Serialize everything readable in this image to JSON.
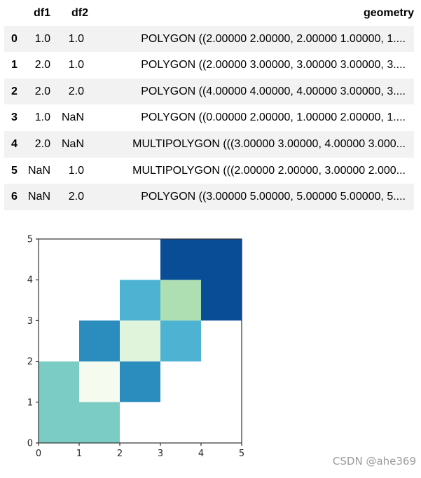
{
  "table": {
    "index_header": "",
    "columns": [
      "df1",
      "df2",
      "geometry"
    ],
    "rows": [
      {
        "index": "0",
        "df1": "1.0",
        "df2": "1.0",
        "geometry": "POLYGON ((2.00000 2.00000, 2.00000 1.00000, 1...."
      },
      {
        "index": "1",
        "df1": "2.0",
        "df2": "1.0",
        "geometry": "POLYGON ((2.00000 3.00000, 3.00000 3.00000, 3...."
      },
      {
        "index": "2",
        "df1": "2.0",
        "df2": "2.0",
        "geometry": "POLYGON ((4.00000 4.00000, 4.00000 3.00000, 3...."
      },
      {
        "index": "3",
        "df1": "1.0",
        "df2": "NaN",
        "geometry": "POLYGON ((0.00000 2.00000, 1.00000 2.00000, 1...."
      },
      {
        "index": "4",
        "df1": "2.0",
        "df2": "NaN",
        "geometry": "MULTIPOLYGON (((3.00000 3.00000, 4.00000 3.000..."
      },
      {
        "index": "5",
        "df1": "NaN",
        "df2": "1.0",
        "geometry": "MULTIPOLYGON (((2.00000 2.00000, 3.00000 2.000..."
      },
      {
        "index": "6",
        "df1": "NaN",
        "df2": "2.0",
        "geometry": "POLYGON ((3.00000 5.00000, 5.00000 5.00000, 5...."
      }
    ]
  },
  "chart_data": {
    "type": "polygon-map",
    "title": "",
    "xlabel": "",
    "ylabel": "",
    "xlim": [
      0,
      5
    ],
    "ylim": [
      0,
      5
    ],
    "xticks": [
      "0",
      "1",
      "2",
      "3",
      "4",
      "5"
    ],
    "yticks": [
      "0",
      "1",
      "2",
      "3",
      "4",
      "5"
    ],
    "grid": false,
    "legend": false,
    "spine_color": "#333333",
    "tick_label_color": "#262626",
    "polygons": [
      {
        "name": "row-0",
        "color": "#f5fbef",
        "points": [
          [
            1,
            1
          ],
          [
            2,
            1
          ],
          [
            2,
            2
          ],
          [
            1,
            2
          ]
        ]
      },
      {
        "name": "row-1",
        "color": "#e0f3db",
        "points": [
          [
            2,
            2
          ],
          [
            3,
            2
          ],
          [
            3,
            3
          ],
          [
            2,
            3
          ]
        ]
      },
      {
        "name": "row-2",
        "color": "#aedfb2",
        "points": [
          [
            3,
            3
          ],
          [
            4,
            3
          ],
          [
            4,
            4
          ],
          [
            3,
            4
          ]
        ]
      },
      {
        "name": "row-3",
        "color": "#7bccc4",
        "points": [
          [
            0,
            0
          ],
          [
            2,
            0
          ],
          [
            2,
            1
          ],
          [
            1,
            1
          ],
          [
            1,
            2
          ],
          [
            0,
            2
          ]
        ]
      },
      {
        "name": "row-4-part-1",
        "color": "#4eb3d3",
        "points": [
          [
            3,
            2
          ],
          [
            4,
            2
          ],
          [
            4,
            3
          ],
          [
            3,
            3
          ]
        ]
      },
      {
        "name": "row-4-part-2",
        "color": "#4eb3d3",
        "points": [
          [
            2,
            3
          ],
          [
            3,
            3
          ],
          [
            3,
            4
          ],
          [
            2,
            4
          ]
        ]
      },
      {
        "name": "row-5-part-1",
        "color": "#2b8cbe",
        "points": [
          [
            2,
            1
          ],
          [
            3,
            1
          ],
          [
            3,
            2
          ],
          [
            2,
            2
          ]
        ]
      },
      {
        "name": "row-5-part-2",
        "color": "#2b8cbe",
        "points": [
          [
            1,
            2
          ],
          [
            2,
            2
          ],
          [
            2,
            3
          ],
          [
            1,
            3
          ]
        ]
      },
      {
        "name": "row-6",
        "color": "#084d96",
        "points": [
          [
            4,
            3
          ],
          [
            5,
            3
          ],
          [
            5,
            5
          ],
          [
            3,
            5
          ],
          [
            3,
            4
          ],
          [
            4,
            4
          ]
        ]
      }
    ]
  },
  "watermark": {
    "text": "CSDN @ahe369",
    "color": "#9b9b9b"
  }
}
